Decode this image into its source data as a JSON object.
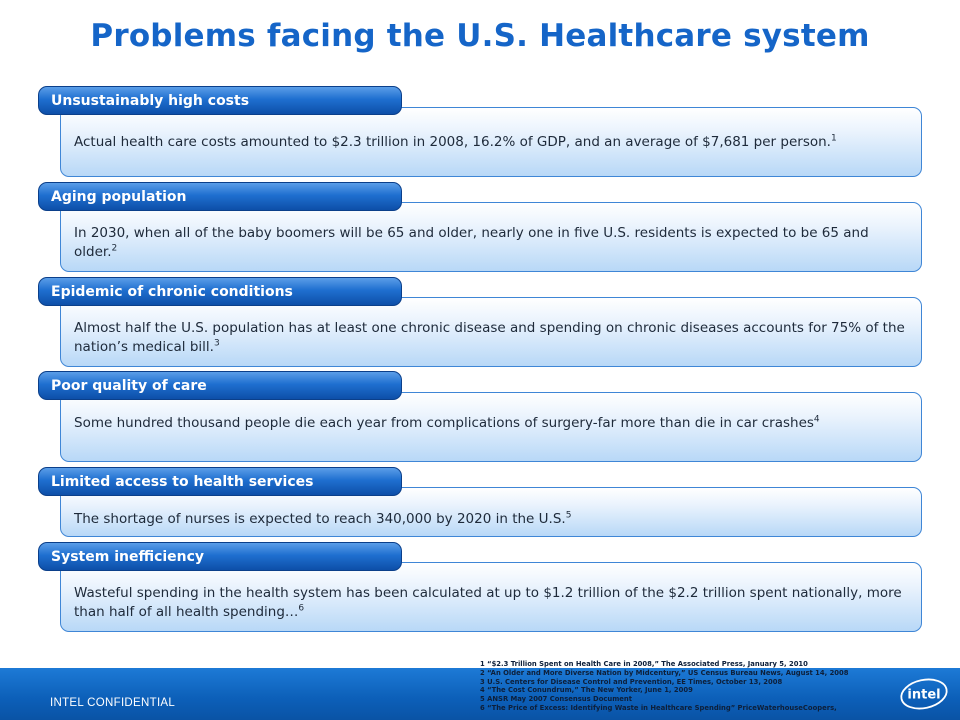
{
  "title": "Problems facing the U.S. Healthcare system",
  "sections": [
    {
      "heading": "Unsustainably high costs",
      "text": "Actual health care costs amounted to $2.3 trillion in 2008, 16.2% of GDP, and an average of $7,681 per person.",
      "ref": "1"
    },
    {
      "heading": "Aging population",
      "text": "In 2030, when all of the baby boomers will be 65 and older, nearly one in five U.S. residents is expected to be 65 and older.",
      "ref": "2"
    },
    {
      "heading": "Epidemic of chronic conditions",
      "text": "Almost half the U.S. population has at least one chronic disease and spending on chronic diseases accounts for 75% of the nation’s medical bill.",
      "ref": "3"
    },
    {
      "heading": "Poor quality of care",
      "text": "Some hundred thousand people die each year from complications of surgery-far more than die in car crashes",
      "ref": "4"
    },
    {
      "heading": "Limited access to health services",
      "text": "The shortage of nurses is expected to reach 340,000 by 2020 in the U.S.",
      "ref": "5"
    },
    {
      "heading": "System inefficiency",
      "text": "Wasteful spending in the health system has been calculated at up to $1.2 trillion of the $2.2 trillion spent nationally, more than half of all health spending…",
      "ref": "6"
    }
  ],
  "footnotes": [
    "1 “$2.3 Trillion Spent on Health Care in 2008,” The Associated Press, January 5, 2010",
    "2 “An Older and More Diverse Nation by Midcentury,” US Census Bureau News, August 14, 2008",
    "3 U.S. Centers for Disease Control and Prevention, EE Times, October 13, 2008",
    "4 “The Cost Conundrum,” The New Yorker, June 1, 2009",
    "5 ANSR May 2007 Consensus Document",
    "6 “The Price of Excess: Identifying Waste in Healthcare Spending” PriceWaterhouseCoopers,"
  ],
  "footer": {
    "confidential": "INTEL CONFIDENTIAL",
    "logo_text": "intel",
    "logo_icon": "intel-logo-icon"
  },
  "colors": {
    "title": "#1565c8",
    "header": "#1f6fd0",
    "box_border": "#3f86d6",
    "footer": "#0c5fb8"
  }
}
